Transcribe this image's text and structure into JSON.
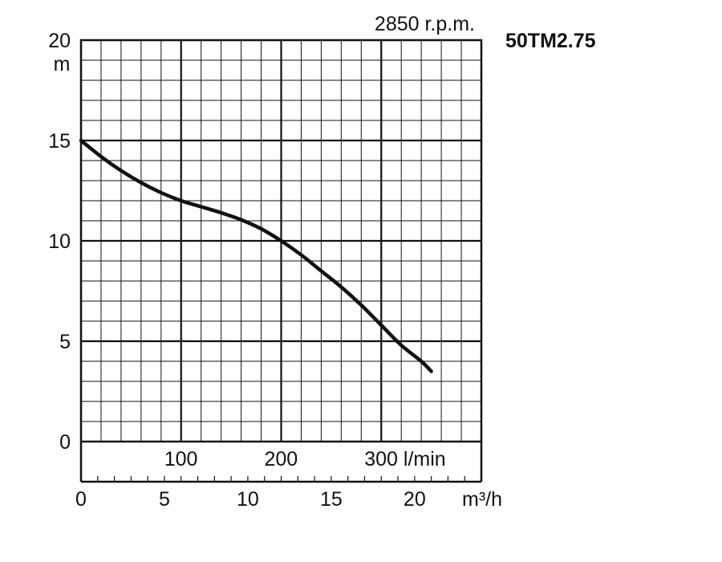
{
  "chart_data": {
    "type": "line",
    "title": "50TM2.75",
    "subtitle": "2850 r.p.m.",
    "ylabel": "m",
    "xlabel": "m³/h",
    "xlabel_secondary": "l/min",
    "ylim": [
      0,
      20
    ],
    "xlim": [
      0,
      24
    ],
    "yticks": [
      0,
      5,
      10,
      15,
      20
    ],
    "xticks": [
      0,
      5,
      10,
      15,
      20
    ],
    "x2ticks": [
      {
        "value": 100,
        "label": "100"
      },
      {
        "value": 200,
        "label": "200"
      },
      {
        "value": 300,
        "label": "300 l/min"
      }
    ],
    "grid": true,
    "series": [
      {
        "x": [
          0,
          1.2,
          2.4,
          3.6,
          4.8,
          6,
          7.2,
          8.4,
          9.6,
          10.8,
          12,
          13.2,
          14.4,
          15.6,
          16.8,
          18,
          19.2,
          20.4,
          21
        ],
        "y": [
          15,
          14.2,
          13.5,
          12.9,
          12.4,
          12,
          11.7,
          11.4,
          11.05,
          10.6,
          10,
          9.3,
          8.5,
          7.7,
          6.8,
          5.8,
          4.8,
          4.0,
          3.5
        ]
      }
    ]
  }
}
